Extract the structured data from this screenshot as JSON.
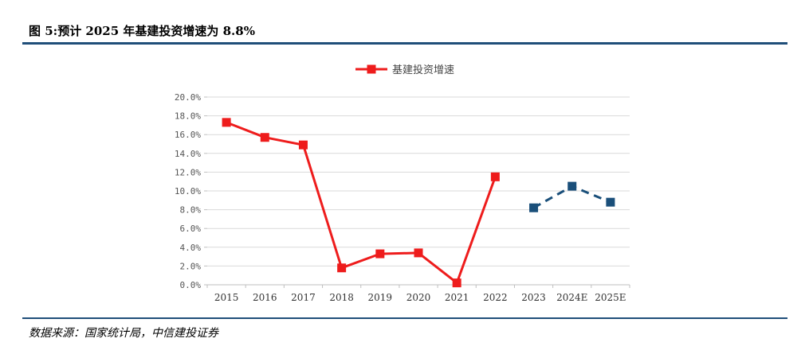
{
  "figure": {
    "title": "图 5:预计 2025 年基建投资增速为 8.8%",
    "source": "数据来源：国家统计局，中信建投证券"
  },
  "colors": {
    "actual": "#ee1c1c",
    "forecast": "#1a4f7a",
    "grid": "#d9d9d9",
    "rule": "#1f4e79"
  },
  "chart_data": {
    "type": "line",
    "categories": [
      "2015",
      "2016",
      "2017",
      "2018",
      "2019",
      "2020",
      "2021",
      "2022",
      "2023",
      "2024E",
      "2025E"
    ],
    "series": [
      {
        "name": "基建投资增速",
        "values": [
          17.3,
          15.7,
          14.9,
          1.8,
          3.3,
          3.4,
          0.2,
          11.5,
          null,
          null,
          null
        ],
        "style": "solid",
        "marker": "square"
      },
      {
        "values": [
          null,
          null,
          null,
          null,
          null,
          null,
          null,
          null,
          8.2,
          10.5,
          8.8
        ],
        "style": "dashed",
        "marker": "square"
      }
    ],
    "ylim": [
      0,
      20
    ],
    "ytick_step": 2,
    "ytick_labels": [
      "0.0%",
      "2.0%",
      "4.0%",
      "6.0%",
      "8.0%",
      "10.0%",
      "12.0%",
      "14.0%",
      "16.0%",
      "18.0%",
      "20.0%"
    ],
    "grid": true,
    "legend": {
      "position": "top-center",
      "label": "基建投资增速"
    }
  }
}
